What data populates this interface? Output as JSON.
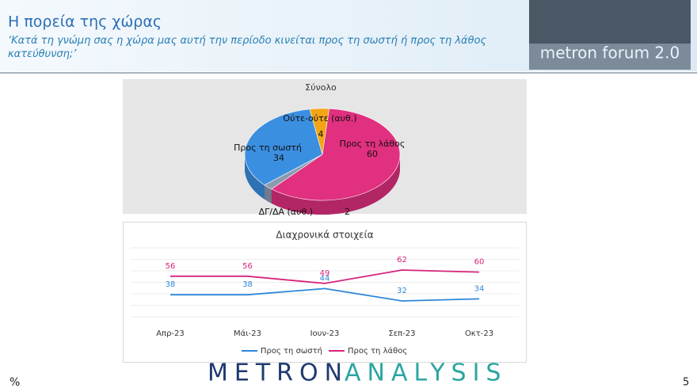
{
  "header": {
    "title": "Η πορεία της χώρας",
    "subtitle": "‘Κατά τη γνώμη σας η χώρα μας αυτή την περίοδο κινείται προς τη σωστή ή προς τη λάθος κατεύθυνση;’",
    "logo": "metron forum 2.0"
  },
  "chart_data": [
    {
      "type": "pie",
      "title": "Σύνολο",
      "categories": [
        "Προς τη λάθος",
        "ΔΓ/ΔΑ (αυθ.)",
        "Προς τη σωστή",
        "Ούτε-ούτε (αυθ.)"
      ],
      "values": [
        60,
        2,
        34,
        4
      ],
      "colors": [
        "#e0307f",
        "#8a9bb0",
        "#3b8fe0",
        "#f2a516"
      ]
    },
    {
      "type": "line",
      "title": "Διαχρονικά στοιχεία",
      "categories": [
        "Απρ-23",
        "Μάι-23",
        "Ιουν-23",
        "Σεπ-23",
        "Οκτ-23"
      ],
      "series": [
        {
          "name": "Προς τη σωστή",
          "color": "#2e86d8",
          "values": [
            38,
            38,
            44,
            32,
            34
          ]
        },
        {
          "name": "Προς τη λάθος",
          "color": "#d6247a",
          "values": [
            56,
            56,
            49,
            62,
            60
          ]
        }
      ],
      "legend": "bottom",
      "grid": true
    }
  ],
  "footer": {
    "brand_left": "METRON",
    "brand_right": "ANALYSIS",
    "symbol": "%",
    "page": "5"
  }
}
